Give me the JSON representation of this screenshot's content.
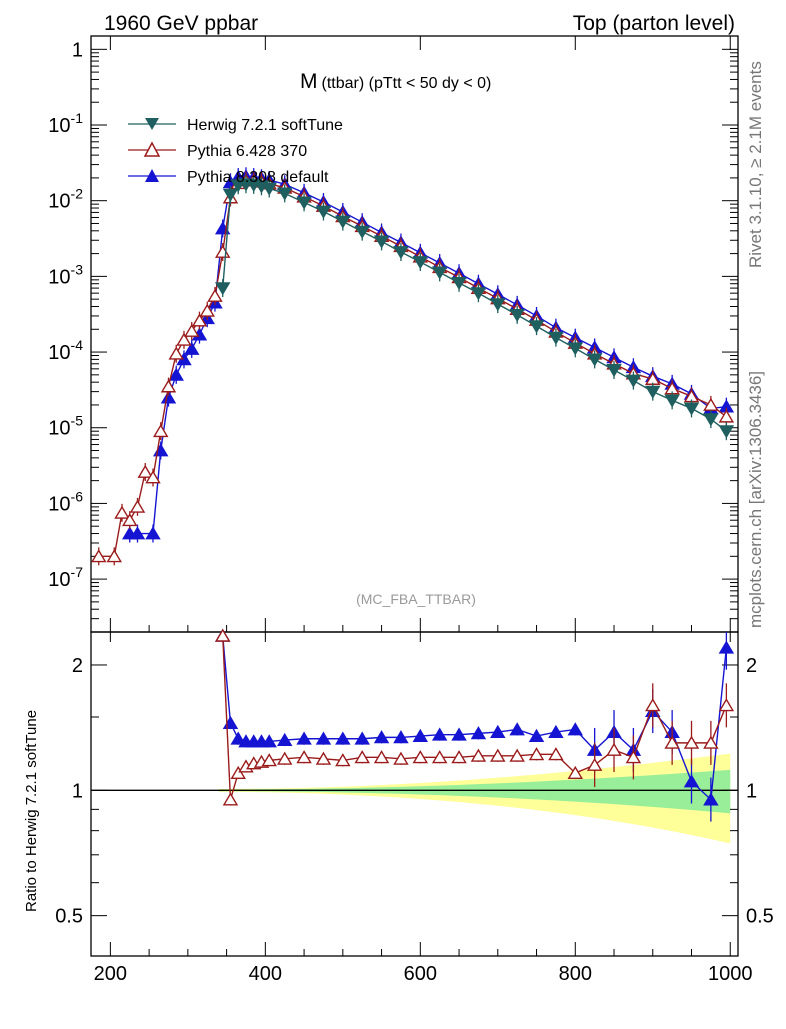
{
  "header": {
    "left": "1960 GeV ppbar",
    "right": "Top (parton level)"
  },
  "side_labels": {
    "rivet": "Rivet 3.1.10, ≥ 2.1M events",
    "mcplots": "mcplots.cern.ch [arXiv:1306.3436]"
  },
  "chart_data": {
    "type": "line",
    "title": "M",
    "subtitle": "(ttbar) (pTtt < 50 dy < 0)",
    "watermark": "(MC_FBA_TTBAR)",
    "xlabel": "",
    "ylabel": "",
    "xlim": [
      175,
      1010
    ],
    "ylim": [
      2e-08,
      1.5
    ],
    "yscale": "log",
    "x_ticks": [
      "200",
      "400",
      "600",
      "800",
      "1000"
    ],
    "y_ticks": [
      "1",
      "10^-1",
      "10^-2",
      "10^-3",
      "10^-4",
      "10^-5",
      "10^-6",
      "10^-7"
    ],
    "legend_position": "top-left",
    "series": [
      {
        "name": "Herwig 7.2.1 softTune",
        "color": "#1f5f5f",
        "marker": "triangle-down-filled",
        "x": [
          345,
          355,
          365,
          375,
          385,
          395,
          405,
          425,
          450,
          475,
          500,
          525,
          550,
          575,
          600,
          625,
          650,
          675,
          700,
          725,
          750,
          775,
          800,
          825,
          850,
          875,
          900,
          925,
          950,
          975,
          995
        ],
        "y": [
          0.0007,
          0.012,
          0.016,
          0.0165,
          0.0162,
          0.0155,
          0.0145,
          0.0125,
          0.0095,
          0.0072,
          0.0053,
          0.0039,
          0.0029,
          0.0021,
          0.00155,
          0.00113,
          0.00082,
          0.0006,
          0.00043,
          0.00031,
          0.00022,
          0.000155,
          0.000112,
          8e-05,
          5.8e-05,
          4.2e-05,
          3e-05,
          2.3e-05,
          1.8e-05,
          1.3e-05,
          9e-06
        ]
      },
      {
        "name": "Pythia 6.428 370",
        "color": "#9b1b1b",
        "marker": "triangle-up-open",
        "x": [
          185,
          205,
          215,
          225,
          235,
          245,
          255,
          265,
          275,
          285,
          295,
          305,
          315,
          325,
          335,
          345,
          355,
          365,
          375,
          385,
          395,
          405,
          425,
          450,
          475,
          500,
          525,
          550,
          575,
          600,
          625,
          650,
          675,
          700,
          725,
          750,
          775,
          800,
          825,
          850,
          875,
          900,
          925,
          950,
          975,
          995
        ],
        "y": [
          2e-07,
          2e-07,
          7.5e-07,
          6e-07,
          9e-07,
          2.6e-06,
          2.2e-06,
          9e-06,
          3.5e-05,
          9.5e-05,
          0.000145,
          0.00019,
          0.00026,
          0.00035,
          0.00055,
          0.0021,
          0.011,
          0.017,
          0.0185,
          0.0185,
          0.0178,
          0.0168,
          0.0148,
          0.0113,
          0.0085,
          0.0062,
          0.0046,
          0.0034,
          0.0025,
          0.00182,
          0.00132,
          0.00097,
          0.0007,
          0.00051,
          0.00037,
          0.000265,
          0.000185,
          0.000132,
          9.5e-05,
          7e-05,
          5.2e-05,
          4.4e-05,
          3.3e-05,
          2.6e-05,
          2e-05,
          1.4e-05
        ]
      },
      {
        "name": "Pythia 8.308 default",
        "color": "#1414d2",
        "marker": "triangle-up-filled",
        "x": [
          225,
          235,
          255,
          265,
          275,
          285,
          295,
          305,
          315,
          325,
          335,
          345,
          355,
          365,
          375,
          385,
          395,
          405,
          425,
          450,
          475,
          500,
          525,
          550,
          575,
          600,
          625,
          650,
          675,
          700,
          725,
          750,
          775,
          800,
          825,
          850,
          875,
          900,
          925,
          950,
          975,
          995
        ],
        "y": [
          4e-07,
          4e-07,
          4e-07,
          5e-06,
          2.5e-05,
          5e-05,
          8e-05,
          0.00011,
          0.00017,
          0.00028,
          0.00045,
          0.0043,
          0.0175,
          0.0205,
          0.021,
          0.0205,
          0.0198,
          0.0188,
          0.0165,
          0.0127,
          0.0096,
          0.0071,
          0.0052,
          0.0038,
          0.0028,
          0.00205,
          0.0015,
          0.0011,
          0.0008,
          0.00058,
          0.00042,
          0.0003,
          0.00021,
          0.000155,
          0.000115,
          8.5e-05,
          6.3e-05,
          4.8e-05,
          3.8e-05,
          2.8e-05,
          1.8e-05,
          1.9e-05
        ]
      }
    ],
    "ratio": {
      "ylabel": "Ratio to Herwig 7.2.1 softTune",
      "ylim": [
        0.4,
        2.4
      ],
      "y_ticks": [
        "0.5",
        "1",
        "2"
      ],
      "series": [
        {
          "name": "Pythia 6.428 370",
          "x": [
            345,
            355,
            365,
            375,
            385,
            395,
            405,
            425,
            450,
            475,
            500,
            525,
            550,
            575,
            600,
            625,
            650,
            675,
            700,
            725,
            750,
            775,
            800,
            825,
            850,
            875,
            900,
            925,
            950,
            975,
            995
          ],
          "y": [
            2.35,
            0.95,
            1.1,
            1.14,
            1.16,
            1.17,
            1.18,
            1.19,
            1.2,
            1.19,
            1.18,
            1.2,
            1.2,
            1.19,
            1.2,
            1.2,
            1.2,
            1.21,
            1.21,
            1.21,
            1.22,
            1.22,
            1.1,
            1.15,
            1.25,
            1.2,
            1.6,
            1.3,
            1.3,
            1.3,
            1.6
          ]
        },
        {
          "name": "Pythia 8.308 default",
          "x": [
            345,
            355,
            365,
            375,
            385,
            395,
            405,
            425,
            450,
            475,
            500,
            525,
            550,
            575,
            600,
            625,
            650,
            675,
            700,
            725,
            750,
            775,
            800,
            825,
            850,
            875,
            900,
            925,
            950,
            975,
            995
          ],
          "y": [
            2.35,
            1.45,
            1.33,
            1.31,
            1.31,
            1.31,
            1.31,
            1.32,
            1.33,
            1.33,
            1.33,
            1.33,
            1.34,
            1.34,
            1.35,
            1.36,
            1.36,
            1.37,
            1.38,
            1.4,
            1.35,
            1.38,
            1.4,
            1.25,
            1.38,
            1.25,
            1.55,
            1.38,
            1.05,
            0.95,
            2.2
          ]
        }
      ],
      "band_green_x": [
        340,
        1000
      ],
      "band_green_halfwidth": [
        0.005,
        0.12
      ],
      "band_yellow_halfwidth": [
        0.01,
        0.3
      ]
    }
  }
}
